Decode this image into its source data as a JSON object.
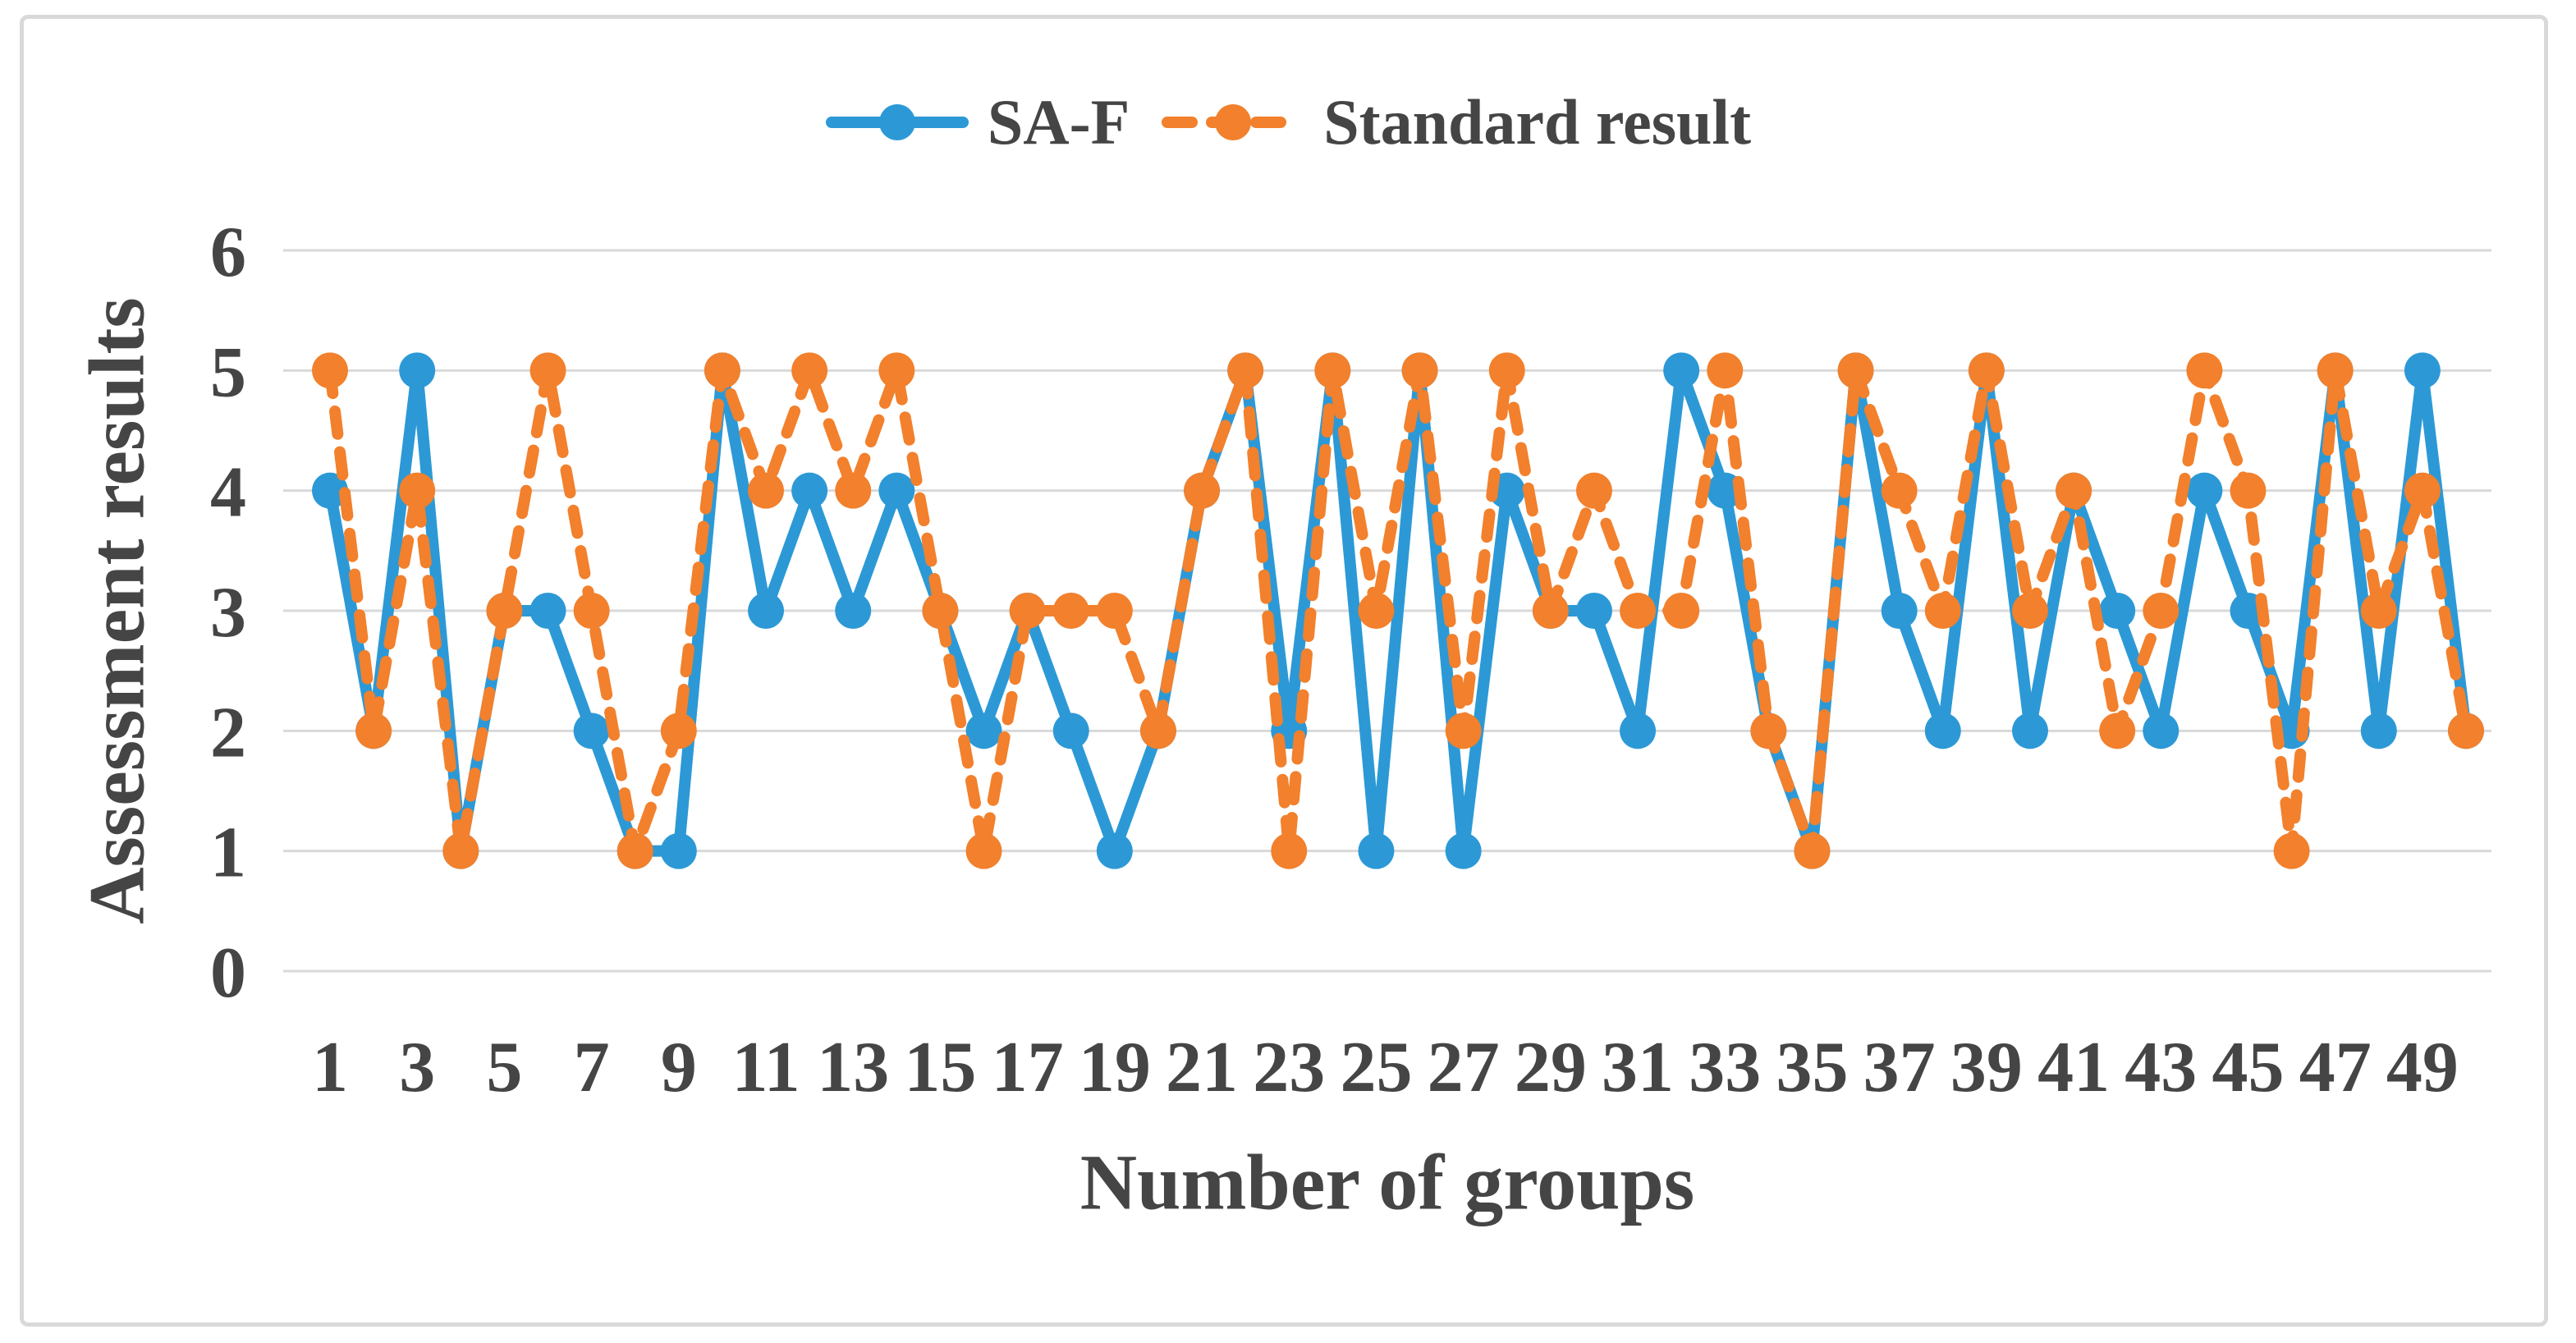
{
  "figure": {
    "background": "#FFFFFF",
    "border_color": "#D9D9D9"
  },
  "chart_data": {
    "type": "line",
    "title": "",
    "xlabel": "Number of groups",
    "ylabel": "Assessment results",
    "x": [
      1,
      2,
      3,
      4,
      5,
      6,
      7,
      8,
      9,
      10,
      11,
      12,
      13,
      14,
      15,
      16,
      17,
      18,
      19,
      20,
      21,
      22,
      23,
      24,
      25,
      26,
      27,
      28,
      29,
      30,
      31,
      32,
      33,
      34,
      35,
      36,
      37,
      38,
      39,
      40,
      41,
      42,
      43,
      44,
      45,
      46,
      47,
      48,
      49,
      50
    ],
    "x_tick_labels": [
      "1",
      "3",
      "5",
      "7",
      "9",
      "11",
      "13",
      "15",
      "17",
      "19",
      "21",
      "23",
      "25",
      "27",
      "29",
      "31",
      "33",
      "35",
      "37",
      "39",
      "41",
      "43",
      "45",
      "47",
      "49"
    ],
    "yticks": [
      0,
      1,
      2,
      3,
      4,
      5,
      6
    ],
    "ylim": [
      0,
      6
    ],
    "grid": true,
    "gridline_color": "#D9D9D9",
    "text_color": "#454545",
    "legend_position": "top-center",
    "series": [
      {
        "name": "SA-F",
        "color": "#2C99D6",
        "line_style": "solid",
        "marker": "circle",
        "values": [
          4,
          2,
          5,
          1,
          3,
          3,
          2,
          1,
          1,
          5,
          3,
          4,
          3,
          4,
          3,
          2,
          3,
          2,
          1,
          2,
          4,
          5,
          2,
          5,
          1,
          5,
          1,
          4,
          3,
          3,
          2,
          5,
          4,
          2,
          1,
          5,
          3,
          2,
          5,
          2,
          4,
          3,
          2,
          4,
          3,
          2,
          5,
          2,
          5,
          2
        ]
      },
      {
        "name": "Standard result",
        "color": "#F2802C",
        "line_style": "dashed",
        "marker": "circle",
        "values": [
          5,
          2,
          4,
          1,
          3,
          5,
          3,
          1,
          2,
          5,
          4,
          5,
          4,
          5,
          3,
          1,
          3,
          3,
          3,
          2,
          4,
          5,
          1,
          5,
          3,
          5,
          2,
          5,
          3,
          4,
          3,
          3,
          5,
          2,
          1,
          5,
          4,
          3,
          5,
          3,
          4,
          2,
          3,
          5,
          4,
          1,
          5,
          3,
          4,
          2
        ]
      }
    ]
  }
}
